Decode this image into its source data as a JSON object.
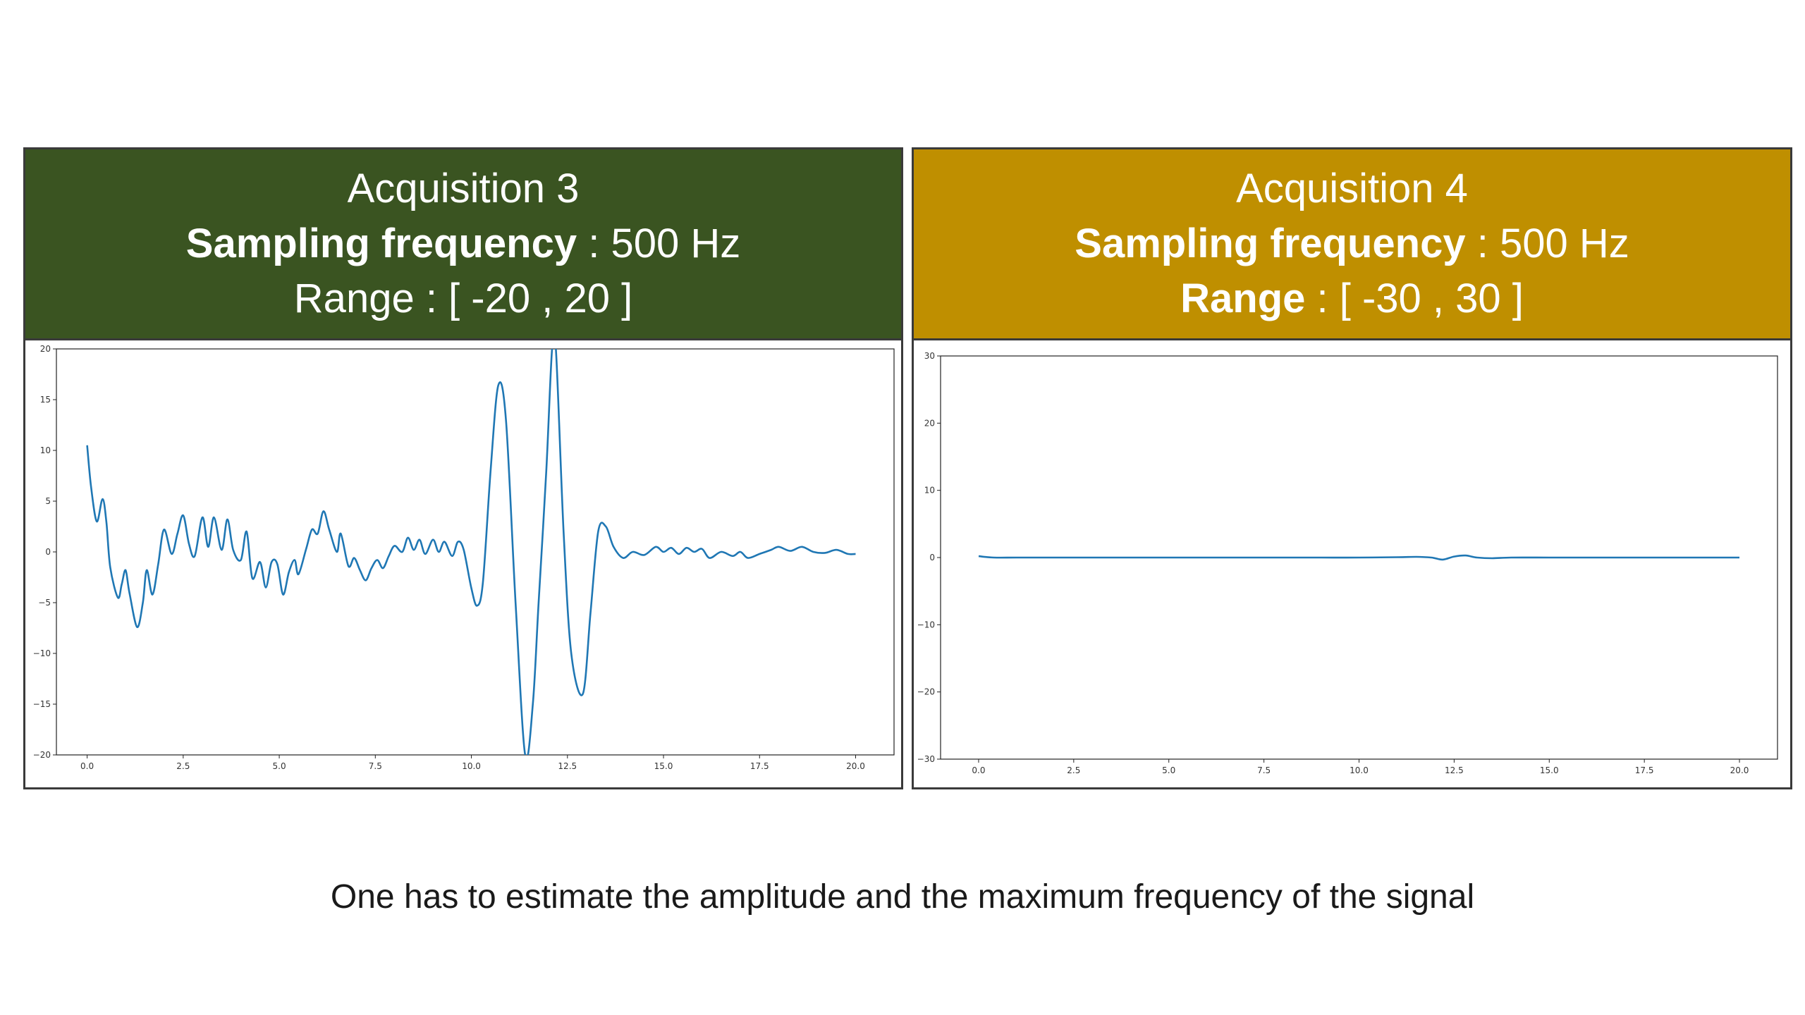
{
  "panels": [
    {
      "title": "Acquisition 3",
      "line2_bold": "Sampling frequency",
      "line2_rest": " : 500 Hz",
      "line3_bold": "",
      "line3_rest": "Range : [ -20 , 20 ]",
      "header_color": "#3a5421"
    },
    {
      "title": "Acquisition 4",
      "line2_bold": "Sampling frequency",
      "line2_rest": " : 500 Hz",
      "line3_bold": "Range",
      "line3_rest": " : [ -30 , 30 ]",
      "header_color": "#bf8f00"
    }
  ],
  "caption": "One has to estimate the amplitude and the maximum frequency of the signal",
  "chart_data": [
    {
      "type": "line",
      "xlim": [
        -0.8,
        21.0
      ],
      "ylim": [
        -20,
        20
      ],
      "xticks": [
        0.0,
        2.5,
        5.0,
        7.5,
        10.0,
        12.5,
        15.0,
        17.5,
        20.0
      ],
      "xtick_labels": [
        "0.0",
        "2.5",
        "5.0",
        "7.5",
        "10.0",
        "12.5",
        "15.0",
        "17.5",
        "20.0"
      ],
      "yticks": [
        -20,
        -15,
        -10,
        -5,
        0,
        5,
        10,
        15,
        20
      ],
      "ytick_labels": [
        "−20",
        "−15",
        "−10",
        "−5",
        "0",
        "5",
        "10",
        "15",
        "20"
      ],
      "line_color": "#1f77b4",
      "series": [
        {
          "x": [
            0.0,
            0.1,
            0.25,
            0.4,
            0.5,
            0.6,
            0.8,
            0.9,
            1.0,
            1.1,
            1.3,
            1.45,
            1.55,
            1.7,
            1.85,
            2.0,
            2.2,
            2.35,
            2.5,
            2.65,
            2.8,
            3.0,
            3.15,
            3.3,
            3.5,
            3.65,
            3.8,
            4.0,
            4.15,
            4.3,
            4.5,
            4.65,
            4.8,
            4.95,
            5.1,
            5.25,
            5.4,
            5.5,
            5.7,
            5.85,
            6.0,
            6.15,
            6.3,
            6.5,
            6.6,
            6.8,
            6.95,
            7.1,
            7.25,
            7.4,
            7.55,
            7.7,
            7.85,
            8.0,
            8.2,
            8.35,
            8.5,
            8.65,
            8.8,
            9.0,
            9.15,
            9.3,
            9.5,
            9.65,
            9.8,
            10.0,
            10.15,
            10.3,
            10.5,
            10.7,
            10.9,
            11.15,
            11.4,
            11.6,
            11.75,
            11.95,
            12.1,
            12.2,
            12.4,
            12.6,
            12.9,
            13.1,
            13.3,
            13.5,
            13.7,
            13.95,
            14.2,
            14.5,
            14.8,
            15.0,
            15.2,
            15.4,
            15.6,
            15.8,
            16.0,
            16.2,
            16.5,
            16.8,
            17.0,
            17.2,
            17.5,
            17.8,
            18.0,
            18.3,
            18.6,
            18.9,
            19.2,
            19.5,
            19.8,
            20.0
          ],
          "y": [
            10.5,
            6.5,
            3.0,
            5.2,
            3.0,
            -1.5,
            -4.5,
            -3.2,
            -1.8,
            -4.0,
            -7.4,
            -5.0,
            -1.8,
            -4.2,
            -1.2,
            2.2,
            -0.2,
            1.8,
            3.6,
            0.8,
            -0.4,
            3.4,
            0.5,
            3.4,
            0.2,
            3.2,
            0.2,
            -0.8,
            2.0,
            -2.6,
            -1.0,
            -3.5,
            -1.0,
            -1.2,
            -4.2,
            -2.0,
            -0.8,
            -2.2,
            0.3,
            2.2,
            1.8,
            4.0,
            2.2,
            0.0,
            1.8,
            -1.4,
            -0.6,
            -1.8,
            -2.8,
            -1.6,
            -0.8,
            -1.6,
            -0.4,
            0.6,
            0.0,
            1.4,
            0.2,
            1.2,
            -0.2,
            1.2,
            0.0,
            1.0,
            -0.4,
            1.0,
            0.2,
            -3.6,
            -5.3,
            -3.0,
            8.0,
            16.4,
            13.0,
            -5.0,
            -20.0,
            -15.0,
            -5.0,
            8.0,
            20.0,
            20.0,
            2.0,
            -10.0,
            -14.0,
            -6.0,
            2.0,
            2.5,
            0.5,
            -0.6,
            0.0,
            -0.3,
            0.5,
            0.0,
            0.4,
            -0.2,
            0.4,
            0.0,
            0.3,
            -0.6,
            0.0,
            -0.4,
            0.0,
            -0.6,
            -0.2,
            0.2,
            0.5,
            0.1,
            0.5,
            0.0,
            -0.1,
            0.2,
            -0.2,
            -0.2
          ]
        }
      ]
    },
    {
      "type": "line",
      "xlim": [
        -1.0,
        21.0
      ],
      "ylim": [
        -30,
        30
      ],
      "xticks": [
        0.0,
        2.5,
        5.0,
        7.5,
        10.0,
        12.5,
        15.0,
        17.5,
        20.0
      ],
      "xtick_labels": [
        "0.0",
        "2.5",
        "5.0",
        "7.5",
        "10.0",
        "12.5",
        "15.0",
        "17.5",
        "20.0"
      ],
      "yticks": [
        -30,
        -20,
        -10,
        0,
        10,
        20,
        30
      ],
      "ytick_labels": [
        "−30",
        "−20",
        "−10",
        "0",
        "10",
        "20",
        "30"
      ],
      "line_color": "#1f77b4",
      "series": [
        {
          "x": [
            0.0,
            0.4,
            1.0,
            2.0,
            3.0,
            4.0,
            5.0,
            6.0,
            7.0,
            8.0,
            9.0,
            10.0,
            11.0,
            11.5,
            11.9,
            12.2,
            12.5,
            12.8,
            13.1,
            13.5,
            14.0,
            15.0,
            16.0,
            17.0,
            18.0,
            19.0,
            20.0
          ],
          "y": [
            0.2,
            0.0,
            0.0,
            0.0,
            0.0,
            0.0,
            0.0,
            0.0,
            0.0,
            0.0,
            0.0,
            0.0,
            0.05,
            0.1,
            0.0,
            -0.3,
            0.15,
            0.3,
            0.0,
            -0.1,
            0.0,
            0.0,
            0.0,
            0.0,
            0.0,
            0.0,
            0.0
          ]
        }
      ]
    }
  ]
}
